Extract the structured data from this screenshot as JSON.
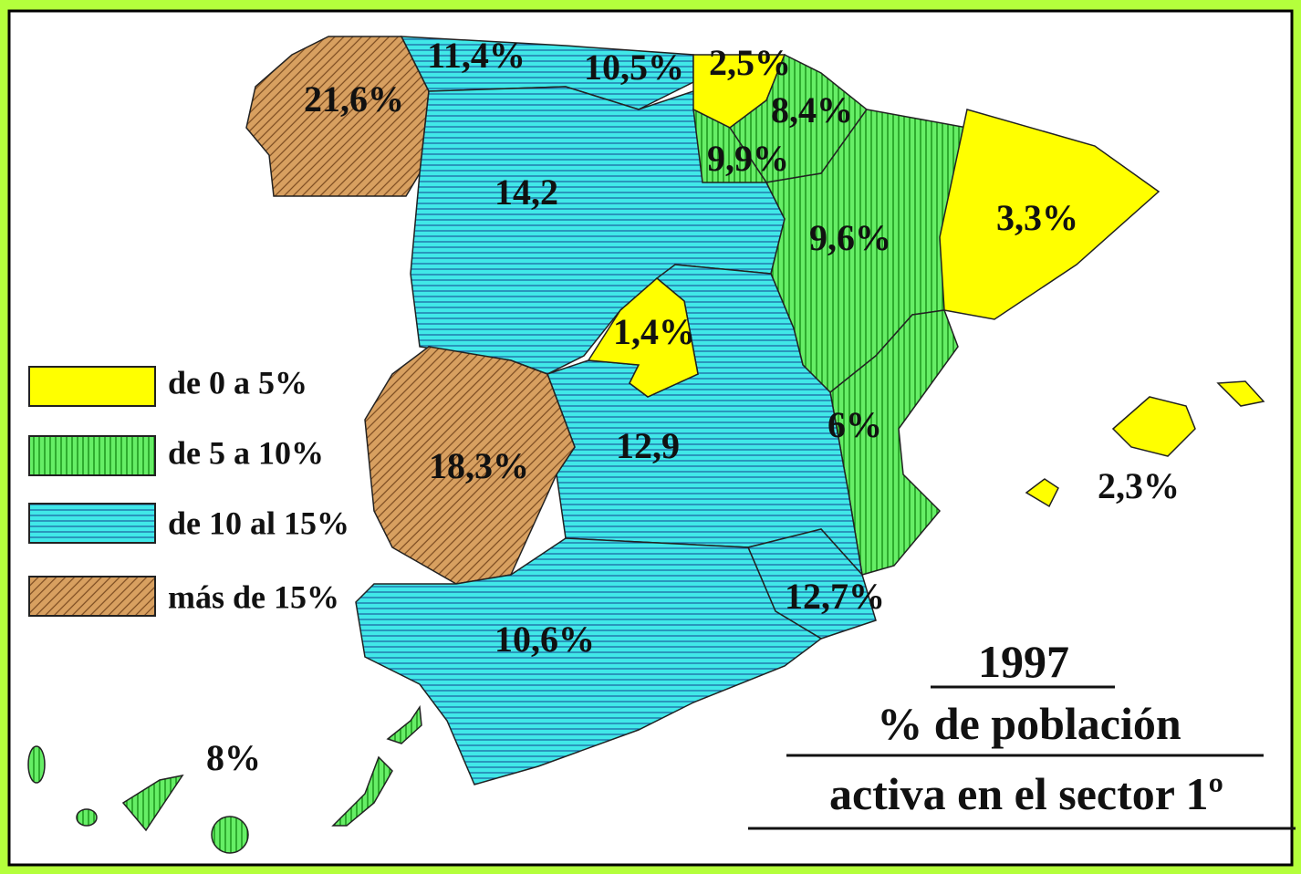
{
  "regions": [
    {
      "label": "21,6%"
    },
    {
      "label": "11,4%"
    },
    {
      "label": "10,5%"
    },
    {
      "label": "2,5%"
    },
    {
      "label": "8,4%"
    },
    {
      "label": "9,9%"
    },
    {
      "label": "14,2"
    },
    {
      "label": "9,6%"
    },
    {
      "label": "3,3%"
    },
    {
      "label": "1,4%"
    },
    {
      "label": "18,3%"
    },
    {
      "label": "12,9"
    },
    {
      "label": "6%"
    },
    {
      "label": "12,7%"
    },
    {
      "label": "10,6%"
    },
    {
      "label": "2,3%"
    },
    {
      "label": "8%"
    }
  ],
  "legend": [
    "de 0 a 5%",
    "de 5 a 10%",
    "de 10 al 15%",
    "más de 15%"
  ],
  "title": {
    "year": "1997",
    "line1": "% de población",
    "line2": "activa en el sector 1º"
  }
}
